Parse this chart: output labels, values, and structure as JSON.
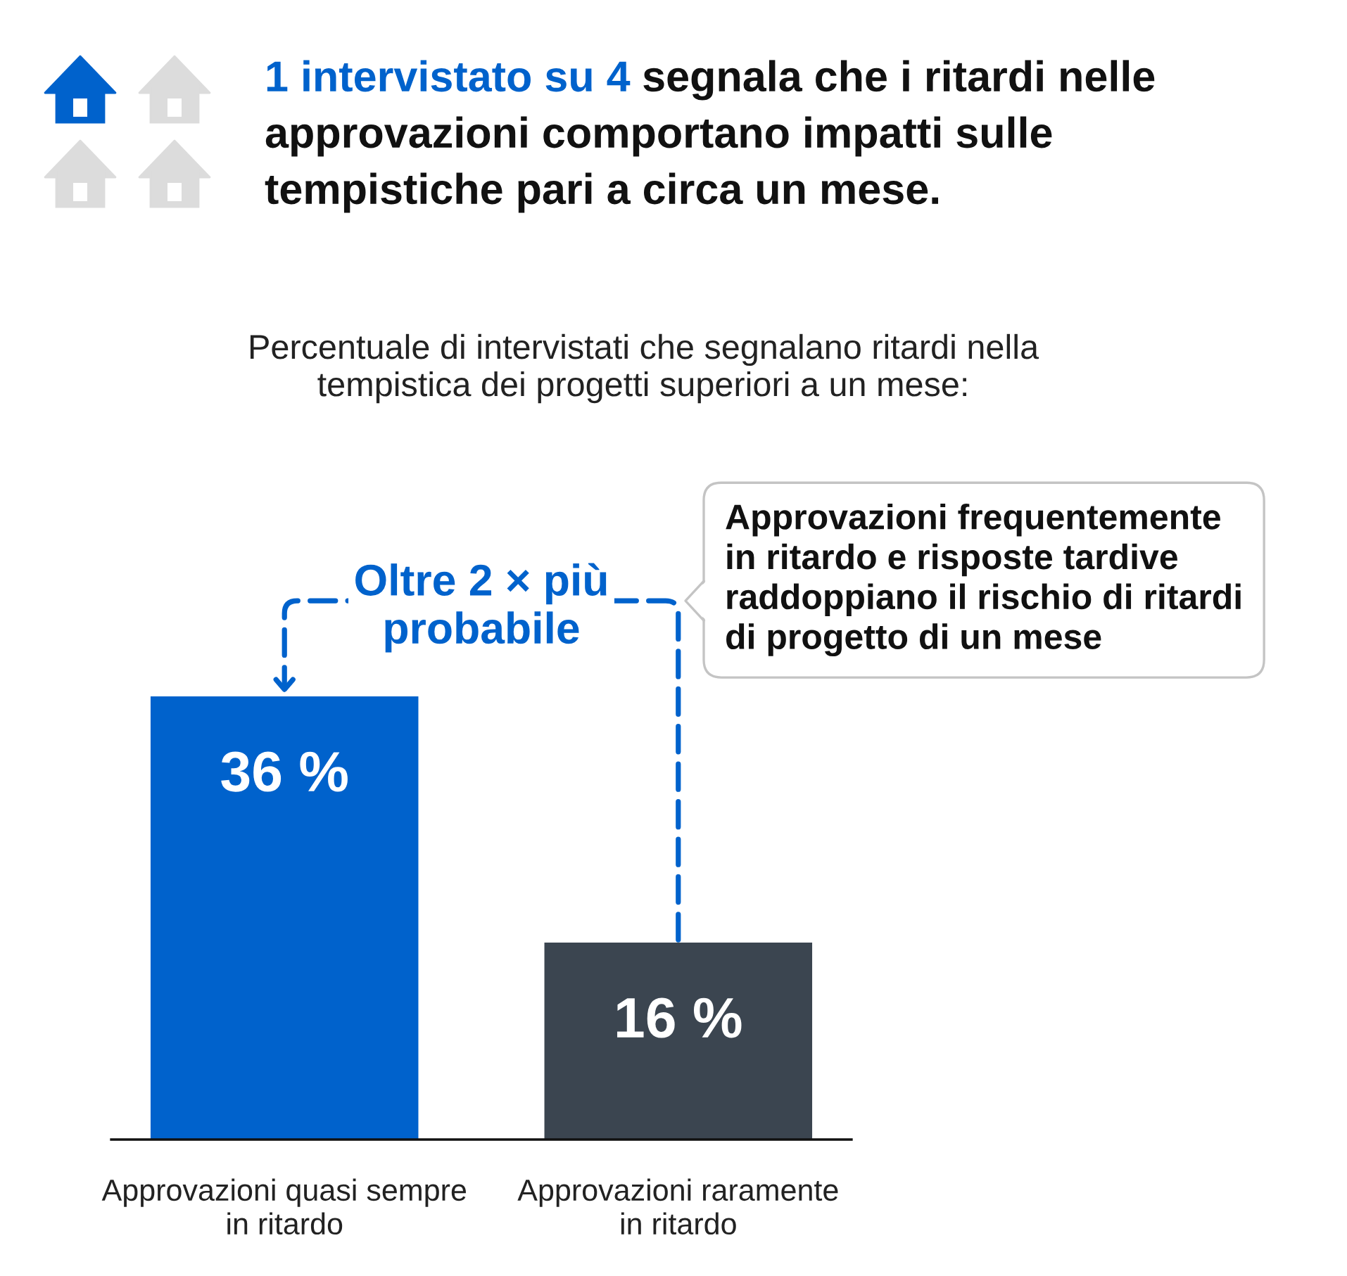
{
  "chart_data": {
    "type": "bar",
    "title": "1 intervistato su 4 segnala che i ritardi nelle\napprovazioni comportano impatti sulle\ntempistiche pari a circa un mese.",
    "subtitle": "Percentuale di intervistati che segnalano ritardi nella\ntempistica dei progetti superiori a un mese:",
    "categories": [
      "Approvazioni quasi sempre\nin ritardo",
      "Approvazioni raramente\nin ritardo"
    ],
    "values": [
      36,
      16
    ],
    "colors": [
      "#0062cc",
      "#3b4550"
    ],
    "value_labels": [
      "36 %",
      "16 %"
    ],
    "annotations": [
      {
        "text": "Oltre 2 × più\nprobabile",
        "x": "Approvazioni quasi sempre\nin ritardo",
        "y": 36
      },
      "Approvazioni frequentemente\nin ritardo e risposte tardive\nraddoppiano il rischio di ritardi\ndi progetto di un mese"
    ],
    "tick_labels": "x"
  }
}
